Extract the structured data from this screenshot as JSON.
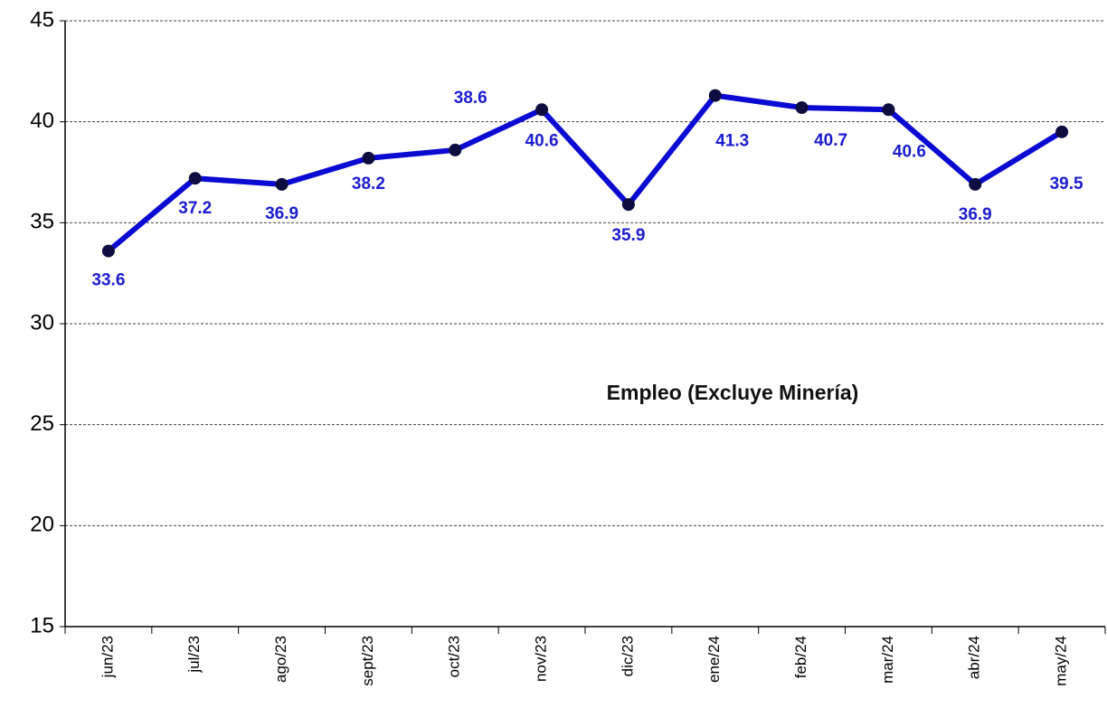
{
  "chart_data": {
    "type": "line",
    "annotation": "Empleo (Excluye Minería)",
    "categories": [
      "jun/23",
      "jul/23",
      "ago/23",
      "sept/23",
      "oct/23",
      "nov/23",
      "dic/23",
      "ene/24",
      "feb/24",
      "mar/24",
      "abr/24",
      "may/24"
    ],
    "series": [
      {
        "name": "Empleo (Excluye Minería)",
        "color": "#0a0ad2",
        "marker_color": "#0d0d40",
        "values": [
          33.6,
          37.2,
          36.9,
          38.2,
          38.6,
          40.6,
          35.9,
          41.3,
          40.7,
          40.6,
          36.9,
          39.5
        ]
      }
    ],
    "ylim": [
      15,
      45
    ],
    "yticks": [
      15,
      20,
      25,
      30,
      35,
      40,
      45
    ],
    "grid": true
  }
}
